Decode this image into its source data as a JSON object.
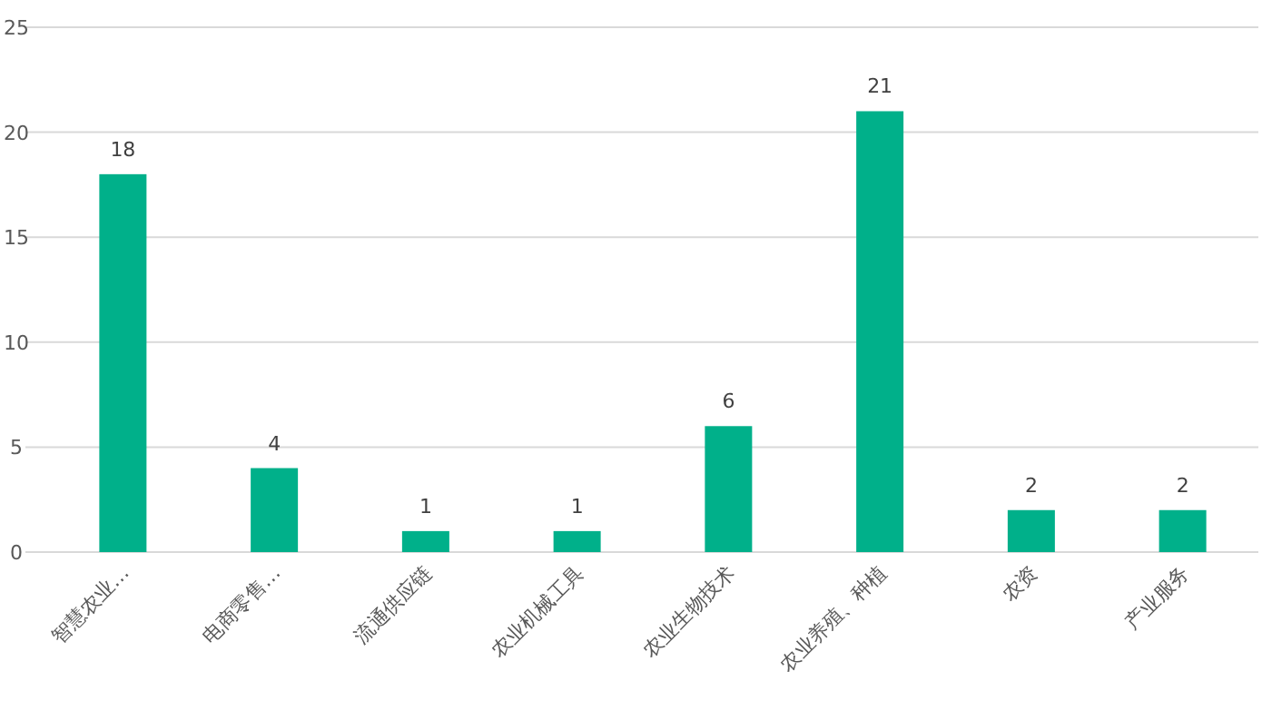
{
  "chart_data": {
    "type": "bar",
    "categories": [
      "智慧农业…",
      "电商零售…",
      "流通供应链",
      "农业机械工具",
      "农业生物技术",
      "农业养殖、种植",
      "农资",
      "产业服务"
    ],
    "values": [
      18,
      4,
      1,
      1,
      6,
      21,
      2,
      2
    ],
    "color": "#00b08a",
    "ylim": [
      0,
      25
    ],
    "yticks": [
      0,
      5,
      10,
      15,
      20,
      25
    ],
    "grid": "y",
    "data_labels": true
  }
}
